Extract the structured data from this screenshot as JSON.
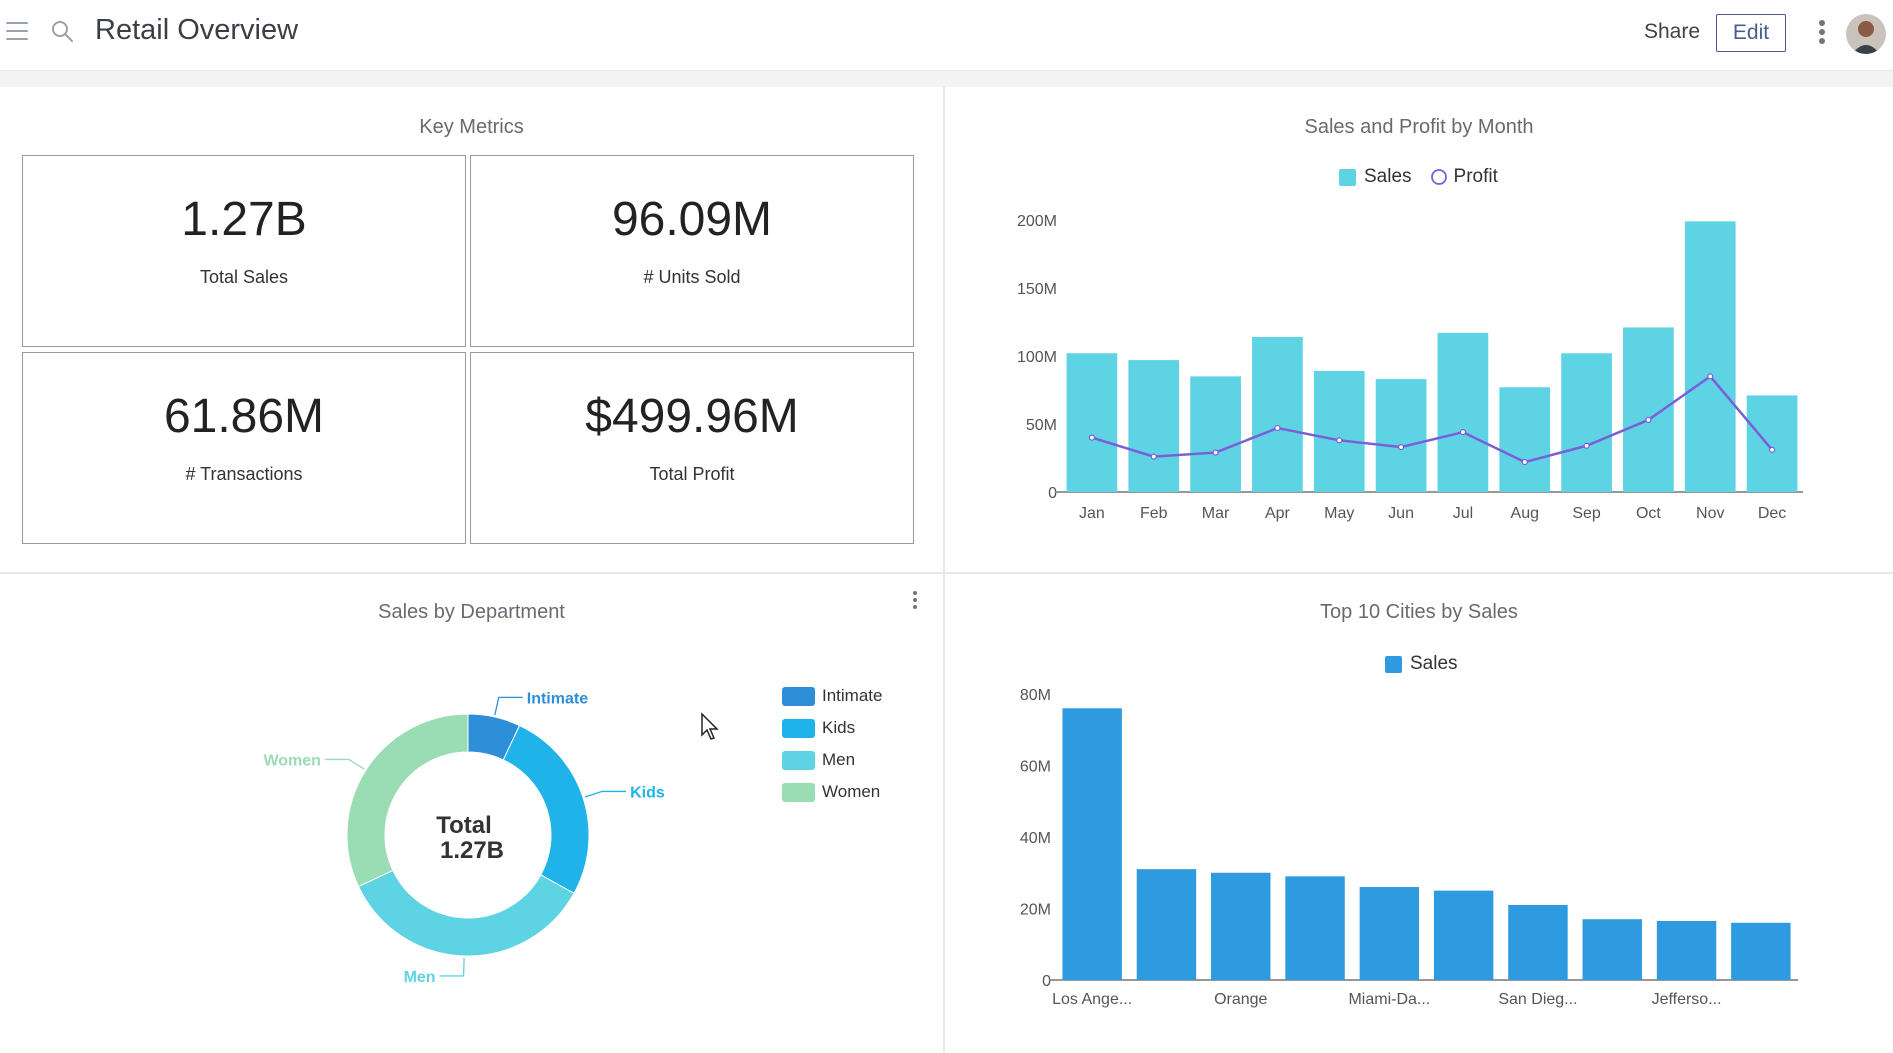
{
  "header": {
    "title": "Retail Overview",
    "share_label": "Share",
    "edit_label": "Edit"
  },
  "key_metrics": {
    "title": "Key Metrics",
    "cards": [
      {
        "value": "1.27B",
        "label": "Total Sales"
      },
      {
        "value": "96.09M",
        "label": "# Units Sold"
      },
      {
        "value": "61.86M",
        "label": "# Transactions"
      },
      {
        "value": "$499.96M",
        "label": "Total Profit"
      }
    ]
  },
  "sales_dept": {
    "title": "Sales by Department"
  },
  "colors": {
    "sales_bar": "#5ed3e4",
    "profit_line": "#7a5fd6",
    "city_bar": "#2e9ae0",
    "intimate": "#2e8fd8",
    "kids": "#1fb3ea",
    "men": "#5ed3e4",
    "women": "#9adcb4"
  },
  "chart_data": [
    {
      "type": "bar",
      "title": "Sales and Profit by Month",
      "categories": [
        "Jan",
        "Feb",
        "Mar",
        "Apr",
        "May",
        "Jun",
        "Jul",
        "Aug",
        "Sep",
        "Oct",
        "Nov",
        "Dec"
      ],
      "series": [
        {
          "name": "Sales",
          "type": "bar",
          "values": [
            102,
            97,
            85,
            114,
            89,
            83,
            117,
            77,
            102,
            121,
            199,
            71
          ]
        },
        {
          "name": "Profit",
          "type": "line",
          "values": [
            40,
            26,
            29,
            47,
            38,
            33,
            44,
            22,
            34,
            53,
            85,
            31
          ]
        }
      ],
      "yticks": [
        "0",
        "50M",
        "100M",
        "150M",
        "200M"
      ],
      "ylim": [
        0,
        200
      ],
      "legend": "top"
    },
    {
      "type": "pie",
      "title": "Sales by Department",
      "center_label": "Total",
      "center_value": "1.27B",
      "slices": [
        {
          "name": "Intimate",
          "value": 0.07
        },
        {
          "name": "Kids",
          "value": 0.26
        },
        {
          "name": "Men",
          "value": 0.35
        },
        {
          "name": "Women",
          "value": 0.32
        }
      ],
      "legend": "right"
    },
    {
      "type": "bar",
      "title": "Top 10 Cities by Sales",
      "categories": [
        "Los Ange...",
        "",
        "Orange",
        "",
        "Miami-Da...",
        "",
        "San Dieg...",
        "",
        "Jefferso...",
        ""
      ],
      "series": [
        {
          "name": "Sales",
          "values": [
            76,
            31,
            30,
            29,
            26,
            25,
            21,
            17,
            16.5,
            16
          ]
        }
      ],
      "yticks": [
        "0",
        "20M",
        "40M",
        "60M",
        "80M"
      ],
      "ylim": [
        0,
        80
      ],
      "legend": "top"
    }
  ]
}
